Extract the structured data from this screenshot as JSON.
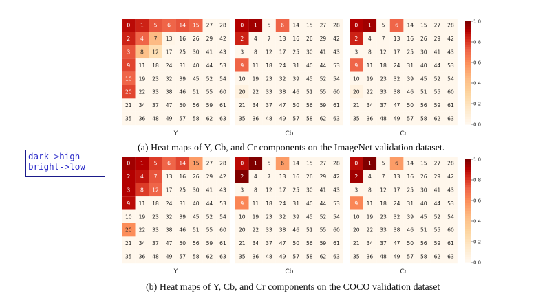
{
  "annotation": {
    "line1": "dark->high",
    "line2": "bright->low"
  },
  "chart_data": [
    {
      "type": "heatmap",
      "caption": "(a) Heat maps of Y, Cb, and Cr components on the ImageNet validation dataset.",
      "colorbar": {
        "range": [
          0.0,
          1.0
        ],
        "ticks": [
          "1.0",
          "0.8",
          "0.6",
          "0.4",
          "0.2",
          "0.0"
        ]
      },
      "grid_labels": [
        [
          0,
          1,
          5,
          6,
          14,
          15,
          27,
          28
        ],
        [
          2,
          4,
          7,
          13,
          16,
          26,
          29,
          42
        ],
        [
          3,
          8,
          12,
          17,
          25,
          30,
          41,
          43
        ],
        [
          9,
          11,
          18,
          24,
          31,
          40,
          44,
          53
        ],
        [
          10,
          19,
          23,
          32,
          39,
          45,
          52,
          54
        ],
        [
          20,
          22,
          33,
          38,
          46,
          51,
          55,
          60
        ],
        [
          21,
          34,
          37,
          47,
          50,
          56,
          59,
          61
        ],
        [
          35,
          36,
          48,
          49,
          57,
          58,
          62,
          63
        ]
      ],
      "panels": [
        {
          "name": "Y",
          "values": [
            [
              0.9,
              0.85,
              0.75,
              0.72,
              0.75,
              0.72,
              0.0,
              0.0
            ],
            [
              0.85,
              0.72,
              0.45,
              0.02,
              0.0,
              0.0,
              0.0,
              0.0
            ],
            [
              0.75,
              0.42,
              0.22,
              0.0,
              0.0,
              0.0,
              0.0,
              0.0
            ],
            [
              0.78,
              0.0,
              0.0,
              0.0,
              0.0,
              0.0,
              0.0,
              0.0
            ],
            [
              0.72,
              0.0,
              0.0,
              0.0,
              0.0,
              0.0,
              0.0,
              0.0
            ],
            [
              0.78,
              0.0,
              0.0,
              0.0,
              0.0,
              0.0,
              0.0,
              0.0
            ],
            [
              0.0,
              0.0,
              0.0,
              0.0,
              0.0,
              0.0,
              0.0,
              0.0
            ],
            [
              0.0,
              0.0,
              0.0,
              0.0,
              0.0,
              0.0,
              0.0,
              0.0
            ]
          ]
        },
        {
          "name": "Cb",
          "values": [
            [
              0.92,
              0.95,
              0.0,
              0.72,
              0.0,
              0.0,
              0.0,
              0.0
            ],
            [
              0.85,
              0.0,
              0.0,
              0.0,
              0.0,
              0.0,
              0.0,
              0.0
            ],
            [
              0.0,
              0.0,
              0.0,
              0.0,
              0.0,
              0.0,
              0.0,
              0.0
            ],
            [
              0.72,
              0.0,
              0.0,
              0.0,
              0.0,
              0.0,
              0.0,
              0.0
            ],
            [
              0.0,
              0.0,
              0.0,
              0.0,
              0.0,
              0.0,
              0.0,
              0.0
            ],
            [
              0.05,
              0.0,
              0.0,
              0.0,
              0.0,
              0.0,
              0.0,
              0.0
            ],
            [
              0.0,
              0.0,
              0.0,
              0.0,
              0.0,
              0.0,
              0.0,
              0.0
            ],
            [
              0.0,
              0.0,
              0.0,
              0.0,
              0.0,
              0.0,
              0.0,
              0.0
            ]
          ]
        },
        {
          "name": "Cr",
          "values": [
            [
              0.92,
              0.95,
              0.0,
              0.72,
              0.0,
              0.0,
              0.0,
              0.0
            ],
            [
              0.85,
              0.0,
              0.0,
              0.0,
              0.0,
              0.0,
              0.0,
              0.0
            ],
            [
              0.0,
              0.0,
              0.0,
              0.0,
              0.0,
              0.0,
              0.0,
              0.0
            ],
            [
              0.72,
              0.0,
              0.0,
              0.0,
              0.0,
              0.0,
              0.0,
              0.0
            ],
            [
              0.0,
              0.0,
              0.0,
              0.0,
              0.0,
              0.0,
              0.0,
              0.0
            ],
            [
              0.05,
              0.0,
              0.0,
              0.0,
              0.0,
              0.0,
              0.0,
              0.0
            ],
            [
              0.0,
              0.0,
              0.0,
              0.0,
              0.0,
              0.0,
              0.0,
              0.0
            ],
            [
              0.0,
              0.0,
              0.0,
              0.0,
              0.0,
              0.0,
              0.0,
              0.0
            ]
          ]
        }
      ]
    },
    {
      "type": "heatmap",
      "caption": "(b) Heat maps of Y, Cb, and Cr components on the COCO validation dataset",
      "colorbar": {
        "range": [
          0.0,
          1.0
        ],
        "ticks": [
          "1.0",
          "0.8",
          "0.6",
          "0.4",
          "0.2",
          "0.0"
        ]
      },
      "grid_labels": [
        [
          0,
          1,
          5,
          6,
          14,
          15,
          27,
          28
        ],
        [
          2,
          4,
          7,
          13,
          16,
          26,
          29,
          42
        ],
        [
          3,
          8,
          12,
          17,
          25,
          30,
          41,
          43
        ],
        [
          9,
          11,
          18,
          24,
          31,
          40,
          44,
          53
        ],
        [
          10,
          19,
          23,
          32,
          39,
          45,
          52,
          54
        ],
        [
          20,
          22,
          33,
          38,
          46,
          51,
          55,
          60
        ],
        [
          21,
          34,
          37,
          47,
          50,
          56,
          59,
          61
        ],
        [
          35,
          36,
          48,
          49,
          57,
          58,
          62,
          63
        ]
      ],
      "panels": [
        {
          "name": "Y",
          "values": [
            [
              0.95,
              0.92,
              0.8,
              0.72,
              0.78,
              0.55,
              0.0,
              0.0
            ],
            [
              0.92,
              0.88,
              0.75,
              0.0,
              0.0,
              0.0,
              0.0,
              0.0
            ],
            [
              0.92,
              0.8,
              0.72,
              0.0,
              0.0,
              0.0,
              0.0,
              0.0
            ],
            [
              0.9,
              0.0,
              0.0,
              0.0,
              0.0,
              0.0,
              0.0,
              0.0
            ],
            [
              0.0,
              0.0,
              0.0,
              0.0,
              0.0,
              0.0,
              0.0,
              0.0
            ],
            [
              0.6,
              0.0,
              0.0,
              0.0,
              0.0,
              0.0,
              0.0,
              0.0
            ],
            [
              0.0,
              0.0,
              0.0,
              0.0,
              0.0,
              0.0,
              0.0,
              0.0
            ],
            [
              0.0,
              0.0,
              0.0,
              0.0,
              0.0,
              0.0,
              0.0,
              0.0
            ]
          ]
        },
        {
          "name": "Cb",
          "values": [
            [
              0.9,
              1.0,
              0.0,
              0.55,
              0.0,
              0.0,
              0.0,
              0.0
            ],
            [
              1.0,
              0.0,
              0.0,
              0.0,
              0.0,
              0.0,
              0.0,
              0.0
            ],
            [
              0.0,
              0.0,
              0.0,
              0.0,
              0.0,
              0.0,
              0.0,
              0.0
            ],
            [
              0.62,
              0.0,
              0.0,
              0.0,
              0.0,
              0.0,
              0.0,
              0.0
            ],
            [
              0.0,
              0.0,
              0.0,
              0.0,
              0.0,
              0.0,
              0.0,
              0.0
            ],
            [
              0.0,
              0.0,
              0.0,
              0.0,
              0.0,
              0.0,
              0.0,
              0.0
            ],
            [
              0.0,
              0.0,
              0.0,
              0.0,
              0.0,
              0.0,
              0.0,
              0.0
            ],
            [
              0.0,
              0.0,
              0.0,
              0.0,
              0.0,
              0.0,
              0.0,
              0.0
            ]
          ]
        },
        {
          "name": "Cr",
          "values": [
            [
              0.9,
              1.0,
              0.0,
              0.55,
              0.0,
              0.0,
              0.0,
              0.0
            ],
            [
              0.95,
              0.0,
              0.0,
              0.0,
              0.0,
              0.0,
              0.0,
              0.0
            ],
            [
              0.0,
              0.0,
              0.0,
              0.0,
              0.0,
              0.0,
              0.0,
              0.0
            ],
            [
              0.62,
              0.0,
              0.0,
              0.0,
              0.0,
              0.0,
              0.0,
              0.0
            ],
            [
              0.0,
              0.0,
              0.0,
              0.0,
              0.0,
              0.0,
              0.0,
              0.0
            ],
            [
              0.0,
              0.0,
              0.0,
              0.0,
              0.0,
              0.0,
              0.0,
              0.0
            ],
            [
              0.0,
              0.0,
              0.0,
              0.0,
              0.0,
              0.0,
              0.0,
              0.0
            ],
            [
              0.0,
              0.0,
              0.0,
              0.0,
              0.0,
              0.0,
              0.0,
              0.0
            ]
          ]
        }
      ]
    }
  ]
}
